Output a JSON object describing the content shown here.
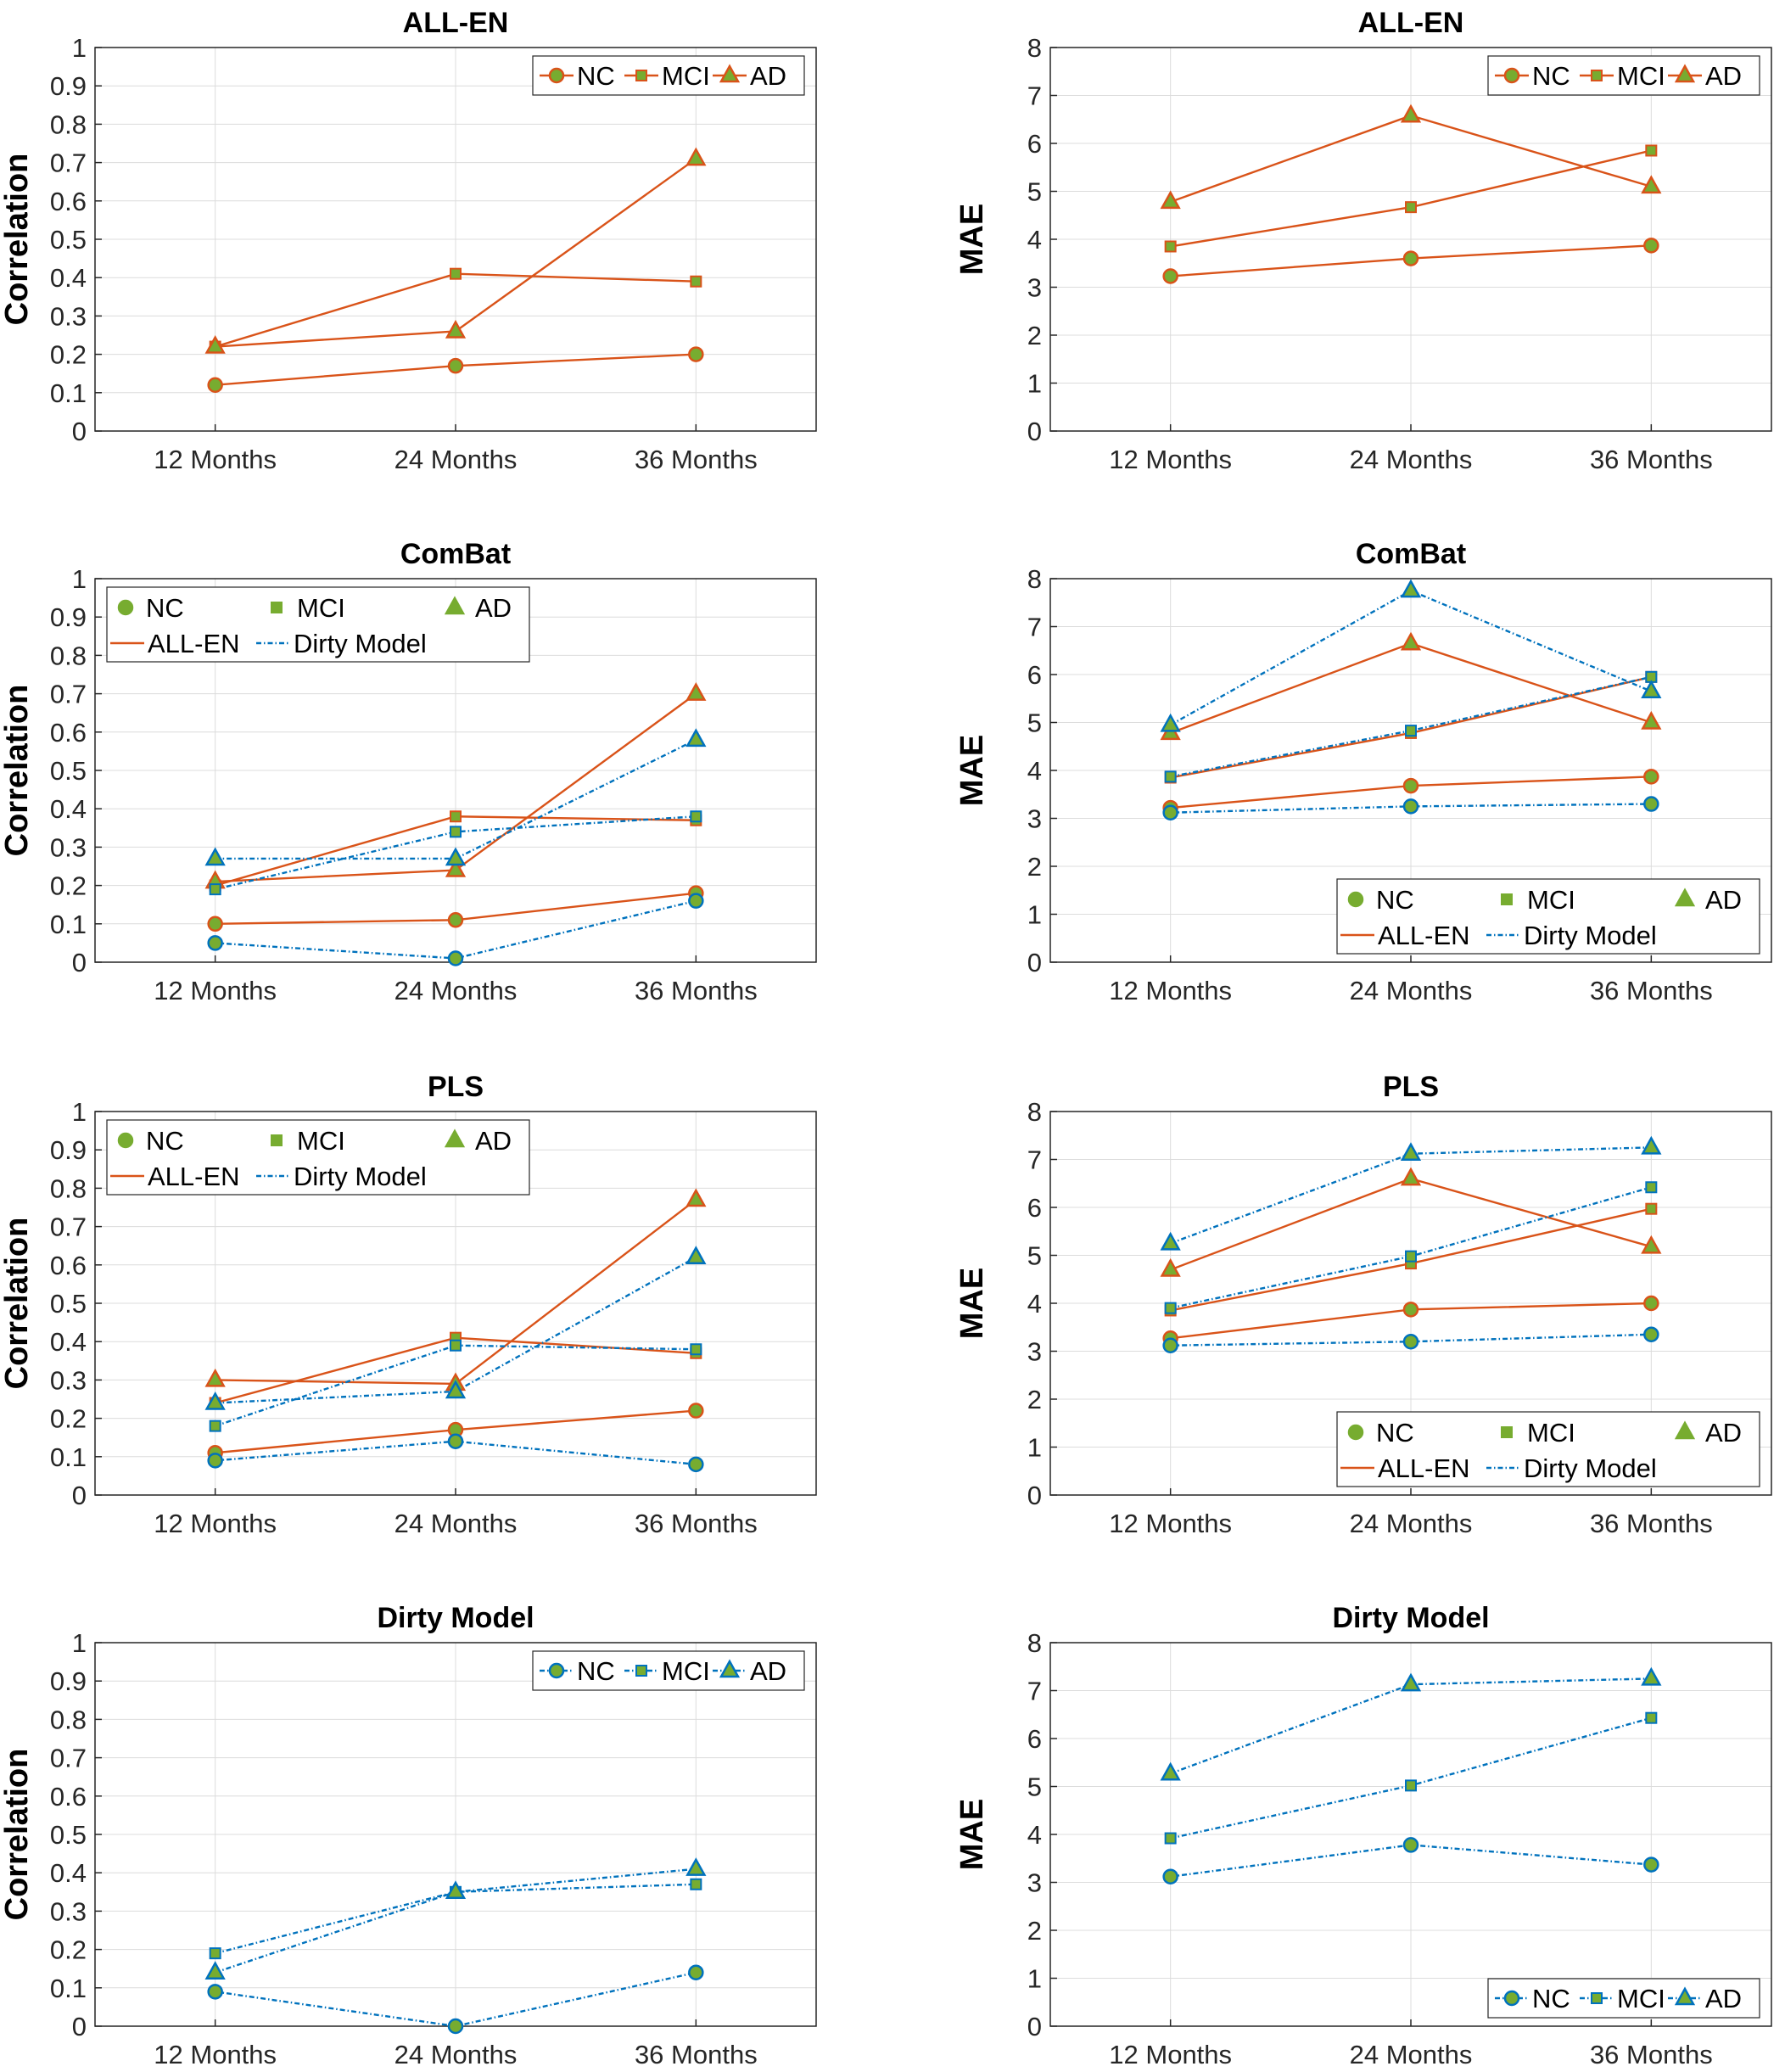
{
  "colors": {
    "all_en": "#D95319",
    "dirty": "#0072BD",
    "marker_fill": "#77AC30"
  },
  "chart_data": [
    {
      "type": "line",
      "title": "ALL-EN",
      "ylabel": "Correlation",
      "ylim": [
        0,
        1
      ],
      "yticks": [
        "0",
        "0.1",
        "0.2",
        "0.3",
        "0.4",
        "0.5",
        "0.6",
        "0.7",
        "0.8",
        "0.9",
        "1"
      ],
      "categories": [
        "12 Months",
        "24 Months",
        "36 Months"
      ],
      "legend": "top-right",
      "legend_items": [
        "NC",
        "MCI",
        "AD"
      ],
      "series": [
        {
          "name": "NC",
          "model": "ALL-EN",
          "marker": "circle",
          "values": [
            0.12,
            0.17,
            0.2
          ]
        },
        {
          "name": "MCI",
          "model": "ALL-EN",
          "marker": "square",
          "values": [
            0.22,
            0.41,
            0.39
          ]
        },
        {
          "name": "AD",
          "model": "ALL-EN",
          "marker": "triangle",
          "values": [
            0.22,
            0.26,
            0.71
          ]
        }
      ]
    },
    {
      "type": "line",
      "title": "ALL-EN",
      "ylabel": "MAE",
      "ylim": [
        0,
        8
      ],
      "yticks": [
        "0",
        "1",
        "2",
        "3",
        "4",
        "5",
        "6",
        "7",
        "8"
      ],
      "categories": [
        "12 Months",
        "24 Months",
        "36 Months"
      ],
      "legend": "top-right",
      "legend_items": [
        "NC",
        "MCI",
        "AD"
      ],
      "series": [
        {
          "name": "NC",
          "model": "ALL-EN",
          "marker": "circle",
          "values": [
            3.23,
            3.6,
            3.87
          ]
        },
        {
          "name": "MCI",
          "model": "ALL-EN",
          "marker": "square",
          "values": [
            3.85,
            4.67,
            5.85
          ]
        },
        {
          "name": "AD",
          "model": "ALL-EN",
          "marker": "triangle",
          "values": [
            4.78,
            6.58,
            5.1
          ]
        }
      ]
    },
    {
      "type": "line",
      "title": "ComBat",
      "ylabel": "Correlation",
      "ylim": [
        0,
        1
      ],
      "yticks": [
        "0",
        "0.1",
        "0.2",
        "0.3",
        "0.4",
        "0.5",
        "0.6",
        "0.7",
        "0.8",
        "0.9",
        "1"
      ],
      "categories": [
        "12 Months",
        "24 Months",
        "36 Months"
      ],
      "legend": "top-left",
      "legend_items": [
        "NC",
        "MCI",
        "AD",
        "ALL-EN",
        "Dirty Model"
      ],
      "series": [
        {
          "name": "NC",
          "model": "ALL-EN",
          "marker": "circle",
          "values": [
            0.1,
            0.11,
            0.18
          ]
        },
        {
          "name": "MCI",
          "model": "ALL-EN",
          "marker": "square",
          "values": [
            0.2,
            0.38,
            0.37
          ]
        },
        {
          "name": "AD",
          "model": "ALL-EN",
          "marker": "triangle",
          "values": [
            0.21,
            0.24,
            0.7
          ]
        },
        {
          "name": "NC",
          "model": "Dirty Model",
          "marker": "circle",
          "values": [
            0.05,
            0.01,
            0.16
          ]
        },
        {
          "name": "MCI",
          "model": "Dirty Model",
          "marker": "square",
          "values": [
            0.19,
            0.34,
            0.38
          ]
        },
        {
          "name": "AD",
          "model": "Dirty Model",
          "marker": "triangle",
          "values": [
            0.27,
            0.27,
            0.58
          ]
        }
      ]
    },
    {
      "type": "line",
      "title": "ComBat",
      "ylabel": "MAE",
      "ylim": [
        0,
        8
      ],
      "yticks": [
        "0",
        "1",
        "2",
        "3",
        "4",
        "5",
        "6",
        "7",
        "8"
      ],
      "categories": [
        "12 Months",
        "24 Months",
        "36 Months"
      ],
      "legend": "bottom-right",
      "legend_items": [
        "NC",
        "MCI",
        "AD",
        "ALL-EN",
        "Dirty Model"
      ],
      "series": [
        {
          "name": "NC",
          "model": "ALL-EN",
          "marker": "circle",
          "values": [
            3.22,
            3.68,
            3.87
          ]
        },
        {
          "name": "MCI",
          "model": "ALL-EN",
          "marker": "square",
          "values": [
            3.85,
            4.78,
            5.95
          ]
        },
        {
          "name": "AD",
          "model": "ALL-EN",
          "marker": "triangle",
          "values": [
            4.78,
            6.65,
            5.0
          ]
        },
        {
          "name": "NC",
          "model": "Dirty Model",
          "marker": "circle",
          "values": [
            3.12,
            3.25,
            3.3
          ]
        },
        {
          "name": "MCI",
          "model": "Dirty Model",
          "marker": "square",
          "values": [
            3.87,
            4.83,
            5.95
          ]
        },
        {
          "name": "AD",
          "model": "Dirty Model",
          "marker": "triangle",
          "values": [
            4.95,
            7.75,
            5.65
          ]
        }
      ]
    },
    {
      "type": "line",
      "title": "PLS",
      "ylabel": "Correlation",
      "ylim": [
        0,
        1
      ],
      "yticks": [
        "0",
        "0.1",
        "0.2",
        "0.3",
        "0.4",
        "0.5",
        "0.6",
        "0.7",
        "0.8",
        "0.9",
        "1"
      ],
      "categories": [
        "12 Months",
        "24 Months",
        "36 Months"
      ],
      "legend": "top-left",
      "legend_items": [
        "NC",
        "MCI",
        "AD",
        "ALL-EN",
        "Dirty Model"
      ],
      "series": [
        {
          "name": "NC",
          "model": "ALL-EN",
          "marker": "circle",
          "values": [
            0.11,
            0.17,
            0.22
          ]
        },
        {
          "name": "MCI",
          "model": "ALL-EN",
          "marker": "square",
          "values": [
            0.24,
            0.41,
            0.37
          ]
        },
        {
          "name": "AD",
          "model": "ALL-EN",
          "marker": "triangle",
          "values": [
            0.3,
            0.29,
            0.77
          ]
        },
        {
          "name": "NC",
          "model": "Dirty Model",
          "marker": "circle",
          "values": [
            0.09,
            0.14,
            0.08
          ]
        },
        {
          "name": "MCI",
          "model": "Dirty Model",
          "marker": "square",
          "values": [
            0.18,
            0.39,
            0.38
          ]
        },
        {
          "name": "AD",
          "model": "Dirty Model",
          "marker": "triangle",
          "values": [
            0.24,
            0.27,
            0.62
          ]
        }
      ]
    },
    {
      "type": "line",
      "title": "PLS",
      "ylabel": "MAE",
      "ylim": [
        0,
        8
      ],
      "yticks": [
        "0",
        "1",
        "2",
        "3",
        "4",
        "5",
        "6",
        "7",
        "8"
      ],
      "categories": [
        "12 Months",
        "24 Months",
        "36 Months"
      ],
      "legend": "bottom-right",
      "legend_items": [
        "NC",
        "MCI",
        "AD",
        "ALL-EN",
        "Dirty Model"
      ],
      "series": [
        {
          "name": "NC",
          "model": "ALL-EN",
          "marker": "circle",
          "values": [
            3.27,
            3.87,
            4.0
          ]
        },
        {
          "name": "MCI",
          "model": "ALL-EN",
          "marker": "square",
          "values": [
            3.85,
            4.83,
            5.97
          ]
        },
        {
          "name": "AD",
          "model": "ALL-EN",
          "marker": "triangle",
          "values": [
            4.7,
            6.6,
            5.18
          ]
        },
        {
          "name": "NC",
          "model": "Dirty Model",
          "marker": "circle",
          "values": [
            3.12,
            3.2,
            3.35
          ]
        },
        {
          "name": "MCI",
          "model": "Dirty Model",
          "marker": "square",
          "values": [
            3.9,
            4.98,
            6.42
          ]
        },
        {
          "name": "AD",
          "model": "Dirty Model",
          "marker": "triangle",
          "values": [
            5.25,
            7.12,
            7.25
          ]
        }
      ]
    },
    {
      "type": "line",
      "title": "Dirty Model",
      "ylabel": "Correlation",
      "ylim": [
        0,
        1
      ],
      "yticks": [
        "0",
        "0.1",
        "0.2",
        "0.3",
        "0.4",
        "0.5",
        "0.6",
        "0.7",
        "0.8",
        "0.9",
        "1"
      ],
      "categories": [
        "12 Months",
        "24 Months",
        "36 Months"
      ],
      "legend": "top-right",
      "legend_items": [
        "NC",
        "MCI",
        "AD"
      ],
      "series": [
        {
          "name": "NC",
          "model": "Dirty Model",
          "marker": "circle",
          "values": [
            0.09,
            0.0,
            0.14
          ]
        },
        {
          "name": "MCI",
          "model": "Dirty Model",
          "marker": "square",
          "values": [
            0.19,
            0.35,
            0.37
          ]
        },
        {
          "name": "AD",
          "model": "Dirty Model",
          "marker": "triangle",
          "values": [
            0.14,
            0.35,
            0.41
          ]
        }
      ]
    },
    {
      "type": "line",
      "title": "Dirty Model",
      "ylabel": "MAE",
      "ylim": [
        0,
        8
      ],
      "yticks": [
        "0",
        "1",
        "2",
        "3",
        "4",
        "5",
        "6",
        "7",
        "8"
      ],
      "categories": [
        "12 Months",
        "24 Months",
        "36 Months"
      ],
      "legend": "bottom-right",
      "legend_items": [
        "NC",
        "MCI",
        "AD"
      ],
      "series": [
        {
          "name": "NC",
          "model": "Dirty Model",
          "marker": "circle",
          "values": [
            3.12,
            3.78,
            3.37
          ]
        },
        {
          "name": "MCI",
          "model": "Dirty Model",
          "marker": "square",
          "values": [
            3.92,
            5.02,
            6.43
          ]
        },
        {
          "name": "AD",
          "model": "Dirty Model",
          "marker": "triangle",
          "values": [
            5.27,
            7.13,
            7.25
          ]
        }
      ]
    }
  ]
}
